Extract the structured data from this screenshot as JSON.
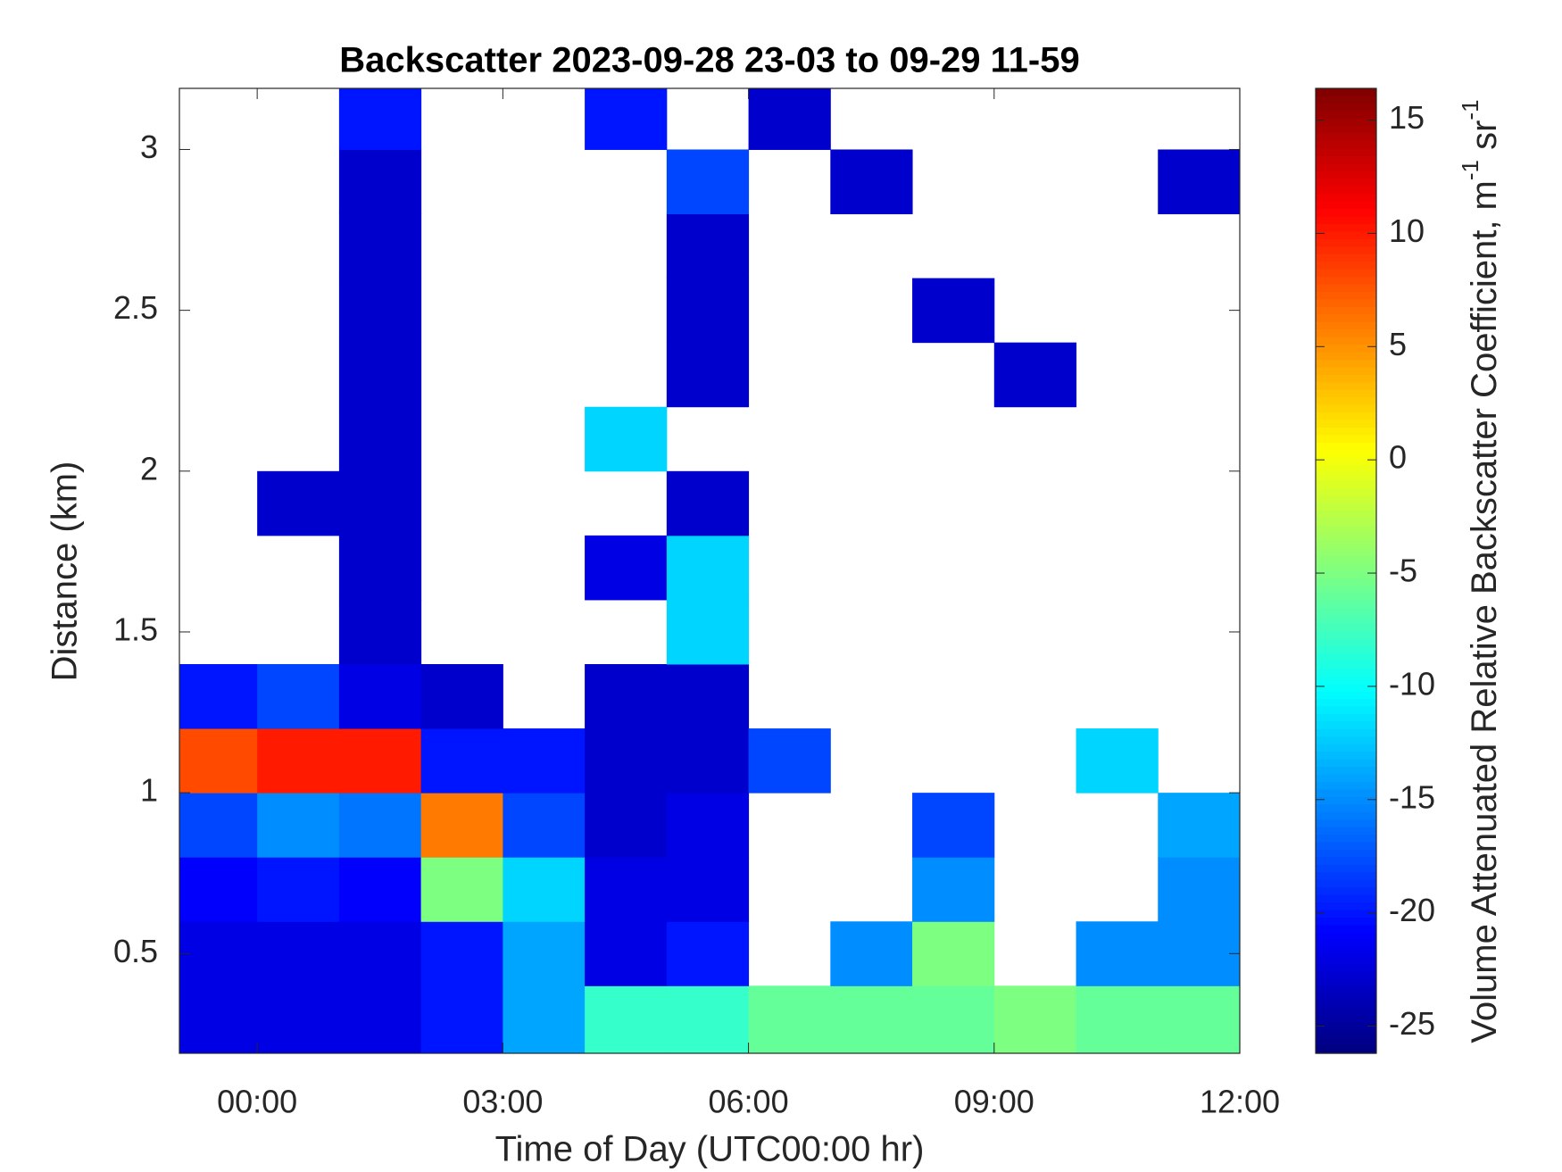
{
  "chart_data": {
    "type": "heatmap",
    "title": "Backscatter 2023-09-28 23-03 to 09-29 11-59",
    "x_label": "Time of Day (UTC00:00 hr)",
    "y_label": "Distance (km)",
    "colorbar_label": [
      "Volume Attenuated Relative Backscatter Coefficient, m",
      "-1",
      " sr",
      "-1"
    ],
    "colormap": "jet",
    "x_edges": [
      -0.95,
      0,
      1,
      2,
      3,
      4,
      5,
      6,
      7,
      8,
      9,
      10,
      11,
      12
    ],
    "y_edges": [
      0.19,
      0.4,
      0.6,
      0.8,
      1.0,
      1.2,
      1.4,
      1.6,
      1.8,
      2.0,
      2.2,
      2.4,
      2.6,
      2.8,
      3.0,
      3.19
    ],
    "z": [
      [
        -22,
        -22,
        -22,
        -20,
        -14,
        -8,
        -8,
        -6,
        -6,
        -6,
        -5,
        -6,
        -6
      ],
      [
        -22,
        -22,
        -22,
        -20,
        -14,
        -22,
        -20,
        null,
        -15,
        -5,
        null,
        -15,
        -15
      ],
      [
        -21,
        -20,
        -21,
        -5,
        -12,
        -22,
        -22,
        null,
        null,
        -15,
        null,
        null,
        -15
      ],
      [
        -18,
        -15,
        -16,
        6,
        -18,
        -23,
        -22,
        null,
        null,
        -18,
        null,
        null,
        -14
      ],
      [
        8,
        10,
        10,
        -20,
        -20,
        -23,
        -23,
        -18,
        null,
        null,
        null,
        -12,
        null
      ],
      [
        -20,
        -18,
        -22,
        -23,
        null,
        -23,
        -23,
        null,
        null,
        null,
        null,
        null,
        null
      ],
      [
        null,
        null,
        -23,
        null,
        null,
        null,
        -12,
        null,
        null,
        null,
        null,
        null,
        null
      ],
      [
        null,
        null,
        -23,
        null,
        null,
        -22,
        -12,
        null,
        null,
        null,
        null,
        null,
        null
      ],
      [
        null,
        -23,
        -23,
        null,
        null,
        null,
        -23,
        null,
        null,
        null,
        null,
        null,
        null
      ],
      [
        null,
        null,
        -23,
        null,
        null,
        -12,
        null,
        null,
        null,
        null,
        null,
        null,
        null
      ],
      [
        null,
        null,
        -23,
        null,
        null,
        null,
        -23,
        null,
        null,
        null,
        -23,
        null,
        null
      ],
      [
        null,
        null,
        -23,
        null,
        null,
        null,
        -23,
        null,
        null,
        -23,
        null,
        null,
        null
      ],
      [
        null,
        null,
        -23,
        null,
        null,
        null,
        -23,
        null,
        null,
        null,
        null,
        null,
        null
      ],
      [
        null,
        null,
        -23,
        null,
        null,
        null,
        -18,
        null,
        -23,
        null,
        null,
        null,
        -23
      ],
      [
        null,
        null,
        -20,
        null,
        null,
        -20,
        null,
        -23,
        null,
        null,
        null,
        null,
        null
      ]
    ],
    "xlim": [
      -0.95,
      12.0
    ],
    "xticks": [
      {
        "value": 0,
        "label": "00:00"
      },
      {
        "value": 3,
        "label": "03:00"
      },
      {
        "value": 6,
        "label": "06:00"
      },
      {
        "value": 9,
        "label": "09:00"
      },
      {
        "value": 12,
        "label": "12:00"
      }
    ],
    "ylim": [
      0.19,
      3.19
    ],
    "yticks": [
      0.5,
      1,
      1.5,
      2,
      2.5,
      3
    ],
    "clim": [
      -26.2,
      16.4
    ],
    "cticks": [
      -25,
      -20,
      -15,
      -10,
      -5,
      0,
      5,
      10,
      15
    ]
  }
}
